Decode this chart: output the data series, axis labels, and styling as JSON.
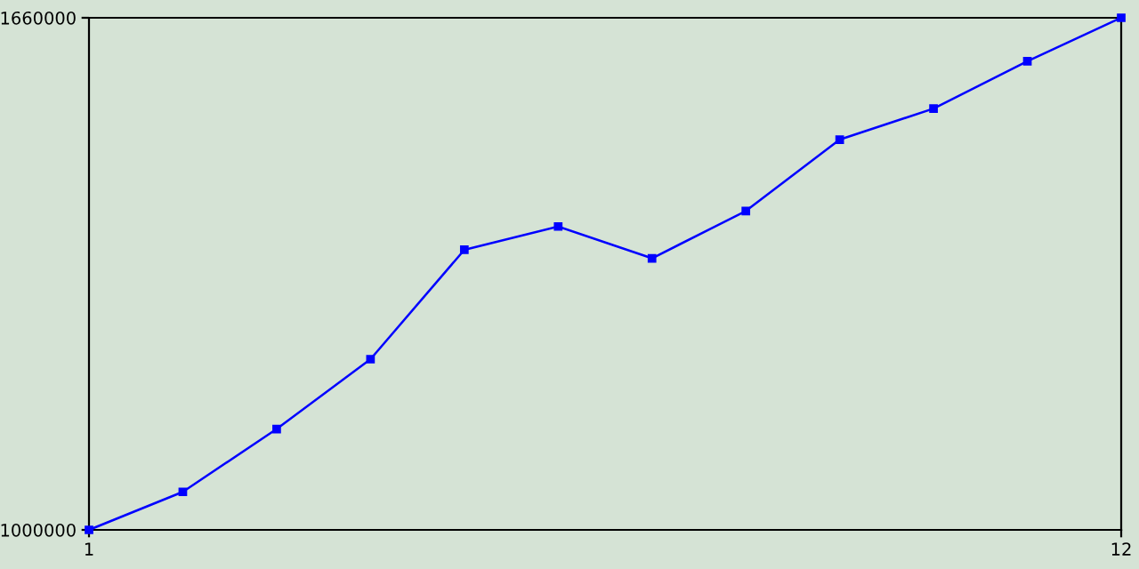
{
  "chart_data": {
    "type": "line",
    "x": [
      1,
      2,
      3,
      4,
      5,
      6,
      7,
      8,
      9,
      10,
      11,
      12
    ],
    "series": [
      {
        "color": "#0000ff",
        "values": [
          1000000,
          1049000,
          1130000,
          1220000,
          1361000,
          1391000,
          1350000,
          1411000,
          1503000,
          1543000,
          1604000,
          1660000
        ]
      }
    ],
    "xlim": [
      1,
      12
    ],
    "xticks": [
      1,
      12
    ],
    "ylim": [
      1000000,
      1660000
    ],
    "yticks": [
      1000000,
      1660000
    ],
    "grid": false,
    "legend": false,
    "marker": "square",
    "line_style": "solid"
  }
}
